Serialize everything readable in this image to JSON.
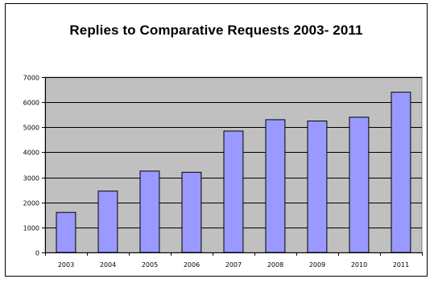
{
  "chart_data": {
    "type": "bar",
    "title": "Replies to Comparative Requests 2003- 2011",
    "xlabel": "",
    "ylabel": "",
    "categories": [
      "2003",
      "2004",
      "2005",
      "2006",
      "2007",
      "2008",
      "2009",
      "2010",
      "2011"
    ],
    "values": [
      1600,
      2450,
      3250,
      3200,
      4850,
      5300,
      5250,
      5400,
      6400
    ],
    "ylim": [
      0,
      7000
    ],
    "yticks": [
      0,
      1000,
      2000,
      3000,
      4000,
      5000,
      6000,
      7000
    ],
    "ytick_labels": [
      "0",
      "1000",
      "2000",
      "3000",
      "4000",
      "5000",
      "6000",
      "7000"
    ],
    "grid": true,
    "legend": "none",
    "colors": {
      "bar_fill": "#9999ff",
      "bar_stroke": "#000000",
      "plot_background": "#c0c0c0",
      "gridline": "#000000"
    }
  }
}
